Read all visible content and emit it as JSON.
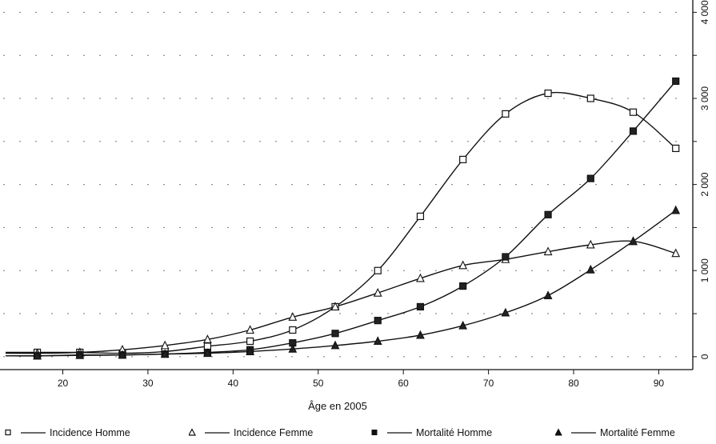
{
  "chart_data": {
    "type": "line",
    "title": "",
    "xlabel": "Âge en 2005",
    "ylabel": "",
    "xlim": [
      13,
      94
    ],
    "ylim": [
      -150,
      4050
    ],
    "x_ticks": [
      20,
      30,
      40,
      50,
      60,
      70,
      80,
      90
    ],
    "x_tick_labels": [
      "20",
      "30",
      "40",
      "50",
      "60",
      "70",
      "80",
      "90"
    ],
    "y_ticks": [
      0,
      1000,
      2000,
      3000,
      4000
    ],
    "y_tick_labels": [
      "0",
      "1 000",
      "2 000",
      "3 000",
      "4 000"
    ],
    "y_axis_side": "right",
    "grid": true,
    "legend_position": "bottom",
    "x": [
      17,
      22,
      27,
      32,
      37,
      42,
      47,
      52,
      57,
      62,
      67,
      72,
      77,
      82,
      87,
      92
    ],
    "series": [
      {
        "name": "Incidence Homme",
        "marker": "open-square",
        "color": "#111111",
        "values": [
          50,
          50,
          40,
          60,
          120,
          180,
          310,
          580,
          1000,
          1630,
          2290,
          2820,
          3060,
          3000,
          2840,
          2420
        ]
      },
      {
        "name": "Incidence Femme",
        "marker": "open-triangle",
        "color": "#111111",
        "values": [
          40,
          50,
          80,
          130,
          200,
          310,
          460,
          580,
          740,
          910,
          1060,
          1130,
          1220,
          1300,
          1340,
          1200
        ]
      },
      {
        "name": "Mortalité Homme",
        "marker": "filled-square",
        "color": "#111111",
        "values": [
          10,
          20,
          20,
          30,
          50,
          80,
          160,
          270,
          420,
          580,
          820,
          1160,
          1650,
          2070,
          2620,
          3200
        ]
      },
      {
        "name": "Mortalité Femme",
        "marker": "filled-triangle",
        "color": "#111111",
        "values": [
          10,
          15,
          20,
          30,
          40,
          60,
          90,
          130,
          180,
          250,
          360,
          510,
          710,
          1010,
          1340,
          1700
        ]
      }
    ]
  }
}
